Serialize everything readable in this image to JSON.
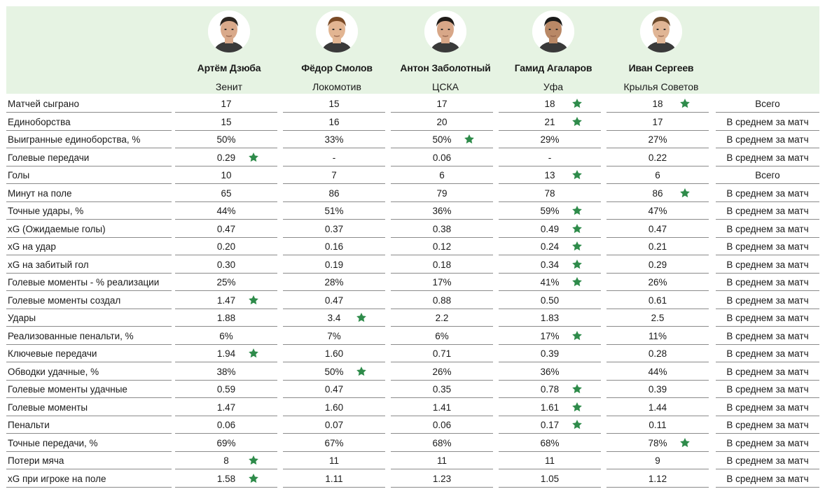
{
  "players": [
    {
      "name": "Артём Дзюба",
      "club": "Зенит"
    },
    {
      "name": "Фёдор Смолов",
      "club": "Локомотив"
    },
    {
      "name": "Антон Заболотный",
      "club": "ЦСКА"
    },
    {
      "name": "Гамид Агаларов",
      "club": "Уфа"
    },
    {
      "name": "Иван Сергеев",
      "club": "Крылья Советов"
    }
  ],
  "colors": {
    "header_bg": "#e6f3e3",
    "star": "#2e8b4a",
    "divider": "#8a8a8a"
  },
  "rows": [
    {
      "label": "Матчей сыграно",
      "values": [
        "17",
        "15",
        "17",
        "18",
        "18"
      ],
      "best": [
        3,
        4
      ],
      "type": "Всего"
    },
    {
      "label": "Единоборства",
      "values": [
        "15",
        "16",
        "20",
        "21",
        "17"
      ],
      "best": [
        3
      ],
      "type": "В среднем за матч"
    },
    {
      "label": "Выигранные единоборства, %",
      "values": [
        "50%",
        "33%",
        "50%",
        "29%",
        "27%"
      ],
      "best": [
        2
      ],
      "type": "В среднем за матч"
    },
    {
      "label": "Голевые передачи",
      "values": [
        "0.29",
        "-",
        "0.06",
        "-",
        "0.22"
      ],
      "best": [
        0
      ],
      "type": "В среднем за матч"
    },
    {
      "label": "Голы",
      "values": [
        "10",
        "7",
        "6",
        "13",
        "6"
      ],
      "best": [
        3
      ],
      "type": "Всего"
    },
    {
      "label": "Минут на поле",
      "values": [
        "65",
        "86",
        "79",
        "78",
        "86"
      ],
      "best": [
        4
      ],
      "type": "В среднем за матч"
    },
    {
      "label": "Точные удары, %",
      "values": [
        "44%",
        "51%",
        "36%",
        "59%",
        "47%"
      ],
      "best": [
        3
      ],
      "type": "В среднем за матч"
    },
    {
      "label": "xG (Ожидаемые голы)",
      "values": [
        "0.47",
        "0.37",
        "0.38",
        "0.49",
        "0.47"
      ],
      "best": [
        3
      ],
      "type": "В среднем за матч"
    },
    {
      "label": "xG на удар",
      "values": [
        "0.20",
        "0.16",
        "0.12",
        "0.24",
        "0.21"
      ],
      "best": [
        3
      ],
      "type": "В среднем за матч"
    },
    {
      "label": "xG на забитый гол",
      "values": [
        "0.30",
        "0.19",
        "0.18",
        "0.34",
        "0.29"
      ],
      "best": [
        3
      ],
      "type": "В среднем за матч"
    },
    {
      "label": "Голевые моменты - % реализации",
      "values": [
        "25%",
        "28%",
        "17%",
        "41%",
        "26%"
      ],
      "best": [
        3
      ],
      "type": "В среднем за матч"
    },
    {
      "label": "Голевые моменты создал",
      "values": [
        "1.47",
        "0.47",
        "0.88",
        "0.50",
        "0.61"
      ],
      "best": [
        0
      ],
      "type": "В среднем за матч"
    },
    {
      "label": "Удары",
      "values": [
        "1.88",
        "3.4",
        "2.2",
        "1.83",
        "2.5"
      ],
      "best": [
        1
      ],
      "type": "В среднем за матч"
    },
    {
      "label": "Реализованные пенальти, %",
      "values": [
        "6%",
        "7%",
        "6%",
        "17%",
        "11%"
      ],
      "best": [
        3
      ],
      "type": "В среднем за матч"
    },
    {
      "label": "Ключевые передачи",
      "values": [
        "1.94",
        "1.60",
        "0.71",
        "0.39",
        "0.28"
      ],
      "best": [
        0
      ],
      "type": "В среднем за матч"
    },
    {
      "label": "Обводки удачные, %",
      "values": [
        "38%",
        "50%",
        "26%",
        "36%",
        "44%"
      ],
      "best": [
        1
      ],
      "type": "В среднем за матч"
    },
    {
      "label": "Голевые моменты удачные",
      "values": [
        "0.59",
        "0.47",
        "0.35",
        "0.78",
        "0.39"
      ],
      "best": [
        3
      ],
      "type": "В среднем за матч"
    },
    {
      "label": "Голевые моменты",
      "values": [
        "1.47",
        "1.60",
        "1.41",
        "1.61",
        "1.44"
      ],
      "best": [
        3
      ],
      "type": "В среднем за матч"
    },
    {
      "label": "Пенальти",
      "values": [
        "0.06",
        "0.07",
        "0.06",
        "0.17",
        "0.11"
      ],
      "best": [
        3
      ],
      "type": "В среднем за матч"
    },
    {
      "label": "Точные передачи, %",
      "values": [
        "69%",
        "67%",
        "68%",
        "68%",
        "78%"
      ],
      "best": [
        4
      ],
      "type": "В среднем за матч"
    },
    {
      "label": "Потери мяча",
      "values": [
        "8",
        "11",
        "11",
        "11",
        "9"
      ],
      "best": [
        0
      ],
      "type": "В среднем за матч"
    },
    {
      "label": "xG при игроке на поле",
      "values": [
        "1.58",
        "1.11",
        "1.23",
        "1.05",
        "1.12"
      ],
      "best": [
        0
      ],
      "type": "В среднем за матч"
    }
  ]
}
